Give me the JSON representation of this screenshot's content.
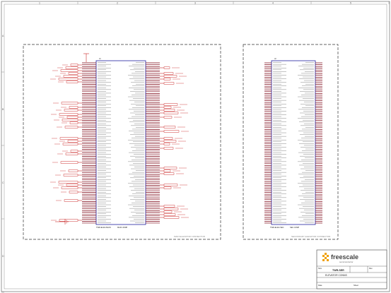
{
  "left_block": {
    "caption": "MAIN ELEVATOR CONNECTOR",
    "part_top": "J1",
    "part_bottom_left": "TWR-ELEV-MAIN",
    "part_bottom_right": "MAIN JUMP"
  },
  "right_block": {
    "caption": "SECONDARY ELEVATOR CONNECTOR",
    "part_top": "J2",
    "part_bottom_left": "TWR-ELEV-SEC",
    "part_bottom_right": "SEC JUMP"
  },
  "title_block": {
    "brand": "freescale",
    "brand_sub": "semiconductor",
    "board": "TWR-SER",
    "sheet_title": "ELEVATOR CONNS",
    "rev_label": "Rev",
    "size_label": "Size",
    "date_label": "Date",
    "sheet_label": "Sheet"
  },
  "frame": {
    "left_marks": [
      "A",
      "B",
      "C",
      "D"
    ],
    "top_marks": [
      "1",
      "2",
      "3",
      "4",
      "5"
    ]
  },
  "colors": {
    "net": "#c00000",
    "border": "#444444",
    "pin": "#7a0010",
    "body": "#2020a0"
  }
}
